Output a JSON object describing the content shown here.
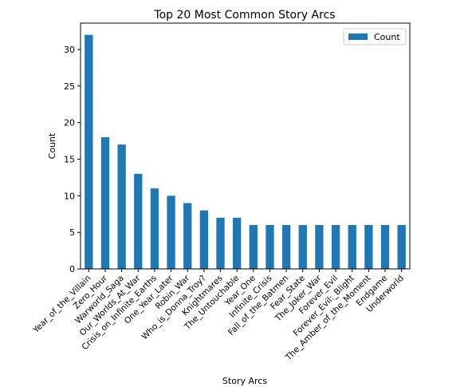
{
  "chart_data": {
    "type": "bar",
    "title": "Top 20 Most Common Story Arcs",
    "xlabel": "Story Arcs",
    "ylabel": "Count",
    "ylim": [
      0,
      33.6
    ],
    "yticks": [
      0,
      5,
      10,
      15,
      20,
      25,
      30
    ],
    "legend": {
      "placement": "top-right",
      "entries": [
        "Count"
      ]
    },
    "grid": false,
    "bar_color": "#1f77b4",
    "categories": [
      "Year_of_the_Villain",
      "Zero_Hour",
      "Warworld_Saga",
      "Our_Worlds_At_War",
      "Crisis_on_Infinite_Earths",
      "One_Year_Later",
      "Robin_War",
      "Who_is_Donna_Troy?",
      "Knightmares",
      "The_Untouchable",
      "Year_One",
      "Infinite_Crisis",
      "Fall_of_the_Batmen",
      "Fear_State",
      "The_Joker_War",
      "Forever_Evil",
      "Forever_Evil:_Blight",
      "The_Amber_of_the_Moment",
      "Endgame",
      "Underworld"
    ],
    "series": [
      {
        "name": "Count",
        "values": [
          32,
          18,
          17,
          13,
          11,
          10,
          9,
          8,
          7,
          7,
          6,
          6,
          6,
          6,
          6,
          6,
          6,
          6,
          6,
          6
        ]
      }
    ]
  }
}
